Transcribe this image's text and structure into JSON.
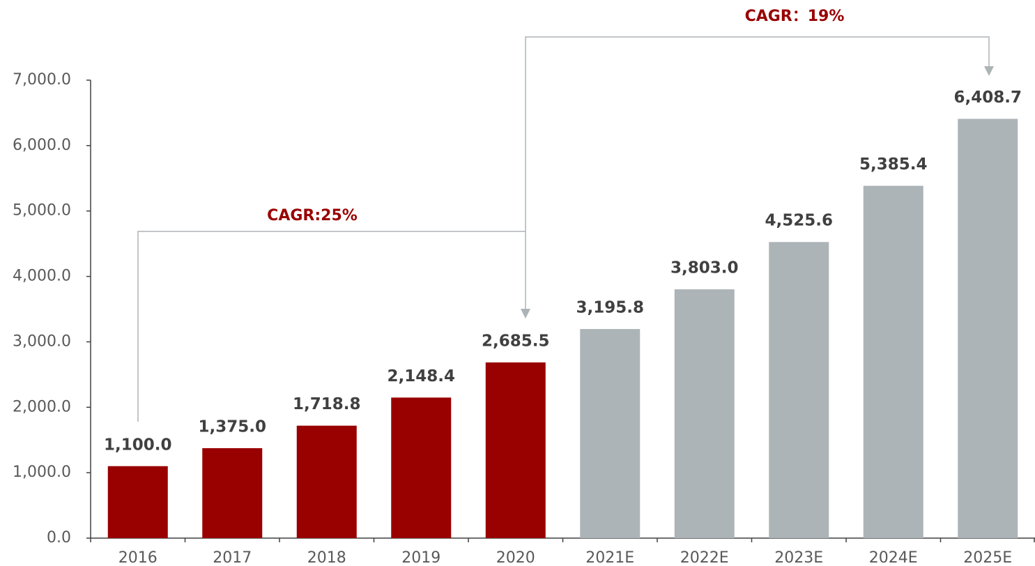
{
  "chart_data": {
    "type": "bar",
    "categories": [
      "2016",
      "2017",
      "2018",
      "2019",
      "2020",
      "2021E",
      "2022E",
      "2023E",
      "2024E",
      "2025E"
    ],
    "values": [
      1100.0,
      1375.0,
      1718.8,
      2148.4,
      2685.5,
      3195.8,
      3803.0,
      4525.6,
      5385.4,
      6408.7
    ],
    "value_labels": [
      "1,100.0",
      "1,375.0",
      "1,718.8",
      "2,148.4",
      "2,685.5",
      "3,195.8",
      "3,803.0",
      "4,525.6",
      "5,385.4",
      "6,408.7"
    ],
    "colors": [
      "#990000",
      "#990000",
      "#990000",
      "#990000",
      "#990000",
      "#adb4b7",
      "#adb4b7",
      "#adb4b7",
      "#adb4b7",
      "#adb4b7"
    ],
    "ylim": [
      0,
      7000
    ],
    "yticks": [
      {
        "value": 0,
        "label": "0.0"
      },
      {
        "value": 1000,
        "label": "1,000.0"
      },
      {
        "value": 2000,
        "label": "2,000.0"
      },
      {
        "value": 3000,
        "label": "3,000.0"
      },
      {
        "value": 4000,
        "label": "4,000.0"
      },
      {
        "value": 5000,
        "label": "5,000.0"
      },
      {
        "value": 6000,
        "label": "6,000.0"
      },
      {
        "value": 7000,
        "label": "7,000.0"
      }
    ],
    "annotations": [
      "CAGR:25%",
      "CAGR：19%"
    ],
    "grid": false
  }
}
